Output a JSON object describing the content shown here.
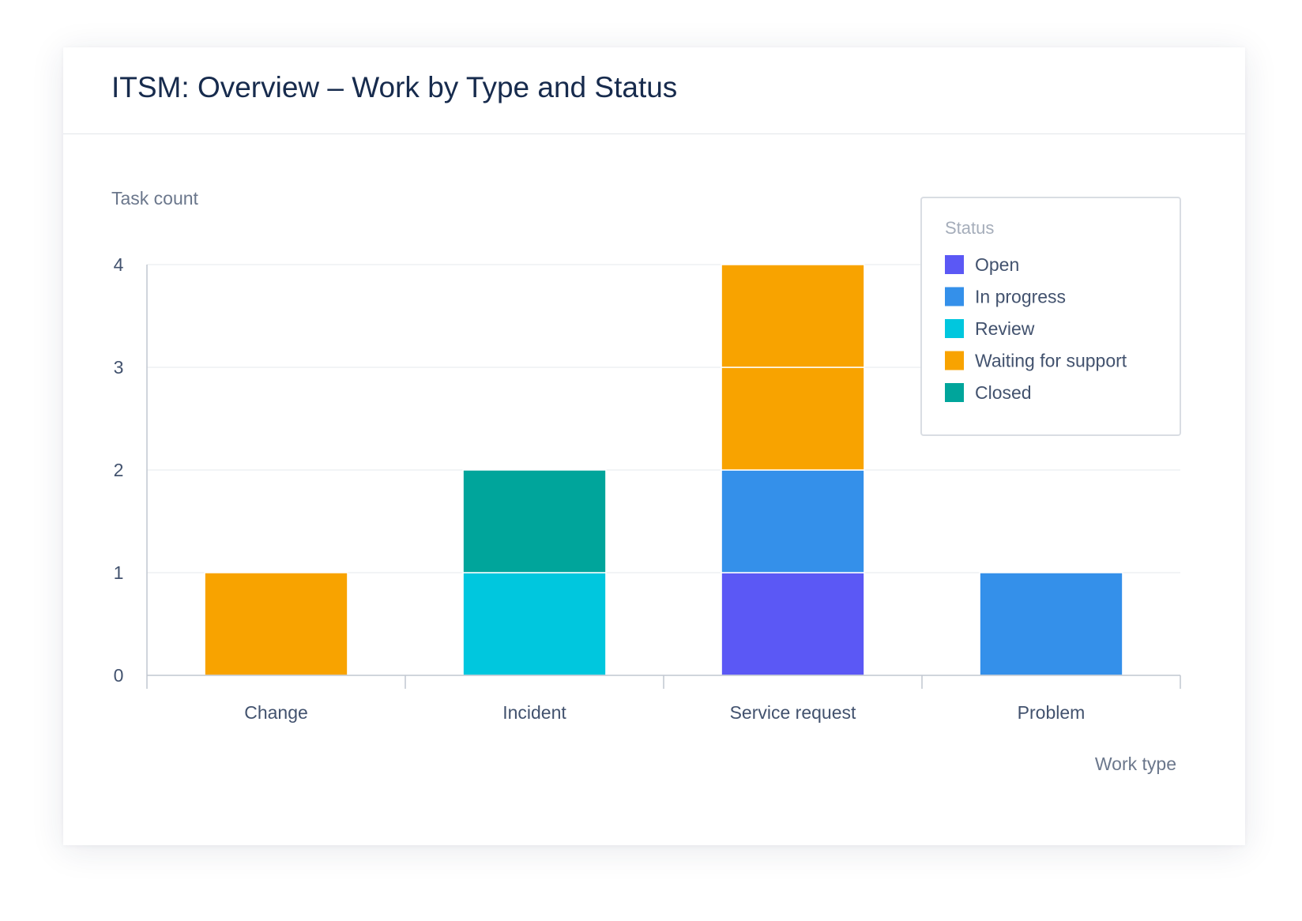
{
  "card": {
    "title": "ITSM: Overview – Work by Type and Status"
  },
  "chart_data": {
    "type": "bar",
    "stacked": true,
    "title": "ITSM: Overview – Work by Type and Status",
    "xlabel": "Work type",
    "ylabel": "Task count",
    "categories": [
      "Change",
      "Incident",
      "Service request",
      "Problem"
    ],
    "ylim": [
      0,
      4
    ],
    "yticks": [
      0,
      1,
      2,
      3,
      4
    ],
    "grid": true,
    "legend_title": "Status",
    "legend_position": "top-right",
    "series": [
      {
        "name": "Open",
        "color": "#5b58f5",
        "values": [
          0,
          0,
          1,
          0
        ]
      },
      {
        "name": "In progress",
        "color": "#3490ea",
        "values": [
          0,
          0,
          1,
          1
        ]
      },
      {
        "name": "Review",
        "color": "#00c7de",
        "values": [
          0,
          1,
          0,
          0
        ]
      },
      {
        "name": "Waiting for support",
        "color": "#f8a300",
        "values": [
          1,
          0,
          2,
          0
        ]
      },
      {
        "name": "Closed",
        "color": "#00a59b",
        "values": [
          0,
          1,
          0,
          0
        ]
      }
    ]
  }
}
